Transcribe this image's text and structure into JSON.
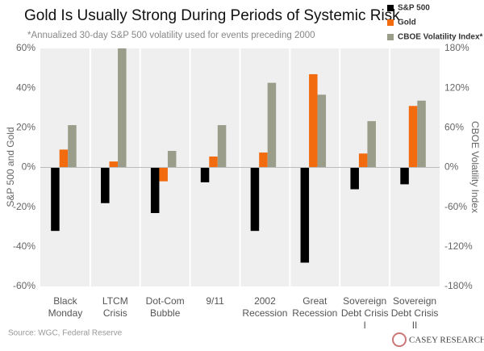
{
  "chart_data": {
    "type": "bar",
    "title": "Gold Is Usually Strong During Periods of Systemic Risk",
    "subtitle": "*Annualized 30-day S&P 500 volatility used for events preceding 2000",
    "source": "Source: WGC, Federal Reserve",
    "logo": "CASEY RESEARCH",
    "y_label": "S&P 500 and Gold",
    "y2_label": "CBOE Volatility Index",
    "categories": [
      [
        "Black",
        "Monday"
      ],
      [
        "LTCM",
        "Crisis"
      ],
      [
        "Dot-Com",
        "Bubble"
      ],
      [
        "9/11"
      ],
      [
        "2002",
        "Recession"
      ],
      [
        "Great",
        "Recession"
      ],
      [
        "Sovereign",
        "Debt Crisis",
        "I"
      ],
      [
        "Sovereign",
        "Debt Crisis",
        "II"
      ]
    ],
    "series": [
      {
        "name": "S&P 500",
        "color": "#000000",
        "values": [
          -32,
          -18,
          -23,
          -7.5,
          -32,
          -48,
          -11,
          -8.5
        ]
      },
      {
        "name": "Gold",
        "color": "#f26b0f",
        "values": [
          9,
          3,
          -7,
          5.5,
          7.5,
          47,
          7,
          31
        ]
      },
      {
        "name": "CBOE Volatility Index*",
        "color": "#9a9d89",
        "axis": "y2",
        "values": [
          64,
          180,
          25,
          64,
          128,
          110,
          70,
          101
        ]
      }
    ],
    "ylim": [
      -60,
      60
    ],
    "yticks": [
      {
        "value": -60,
        "label": "-60%"
      },
      {
        "value": -40,
        "label": "-40%"
      },
      {
        "value": -20,
        "label": "-20%"
      },
      {
        "value": 0,
        "label": "0%"
      },
      {
        "value": 20,
        "label": "20%"
      },
      {
        "value": 40,
        "label": "40%"
      },
      {
        "value": 60,
        "label": "60%"
      }
    ],
    "y2lim": [
      -180,
      180
    ],
    "y2ticks": [
      {
        "value": -180,
        "label": "-180%"
      },
      {
        "value": -120,
        "label": "-120%"
      },
      {
        "value": -60,
        "label": "-60%"
      },
      {
        "value": 0,
        "label": "0%"
      },
      {
        "value": 60,
        "label": "60%"
      },
      {
        "value": 120,
        "label": "120%"
      },
      {
        "value": 180,
        "label": "180%"
      }
    ],
    "grid": false,
    "legend": "top-right"
  }
}
